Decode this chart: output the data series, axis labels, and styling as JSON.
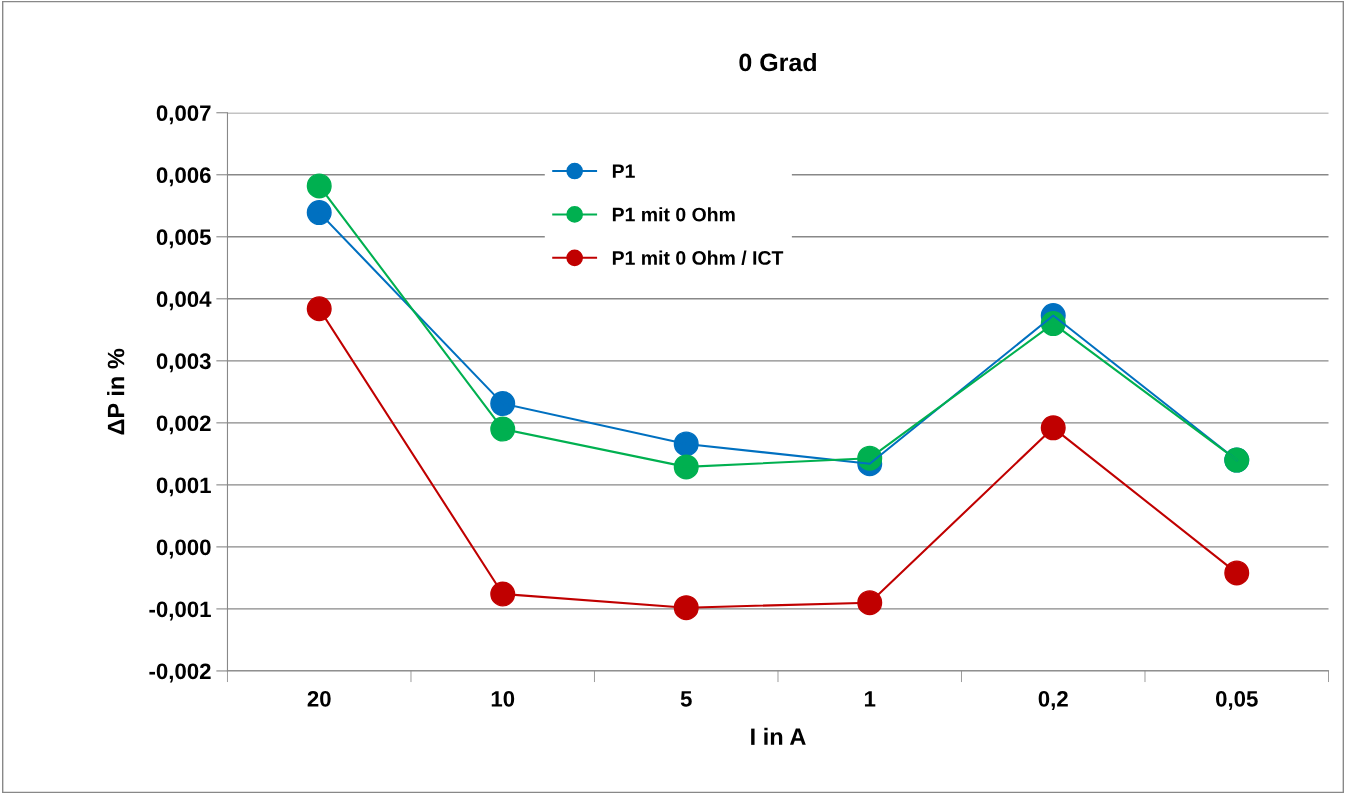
{
  "chart_data": {
    "type": "line",
    "title": "0 Grad",
    "xlabel": "I in A",
    "ylabel": "ΔP in %",
    "categories": [
      "20",
      "10",
      "5",
      "1",
      "0,2",
      "0,05"
    ],
    "series": [
      {
        "name": "P1",
        "color": "#0070c0",
        "values": [
          0.00539,
          0.00231,
          0.00166,
          0.00134,
          0.00373,
          0.0014
        ]
      },
      {
        "name": "P1 mit 0 Ohm",
        "color": "#00b050",
        "values": [
          0.00582,
          0.0019,
          0.00129,
          0.00143,
          0.0036,
          0.0014
        ]
      },
      {
        "name": "P1 mit 0 Ohm / ICT",
        "color": "#c00000",
        "values": [
          0.00384,
          -0.00076,
          -0.00098,
          -0.0009,
          0.00192,
          -0.00042
        ]
      }
    ],
    "ylim": [
      -0.002,
      0.007
    ],
    "yticks": [
      {
        "value": -0.002,
        "label": "-0,002"
      },
      {
        "value": -0.001,
        "label": "-0,001"
      },
      {
        "value": 0,
        "label": "0,000"
      },
      {
        "value": 0.001,
        "label": "0,001"
      },
      {
        "value": 0.002,
        "label": "0,002"
      },
      {
        "value": 0.003,
        "label": "0,003"
      },
      {
        "value": 0.004,
        "label": "0,004"
      },
      {
        "value": 0.005,
        "label": "0,005"
      },
      {
        "value": 0.006,
        "label": "0,006"
      },
      {
        "value": 0.007,
        "label": "0,007"
      }
    ],
    "grid": "y",
    "legend": "top",
    "marker": "circle",
    "line_style": "solid"
  }
}
